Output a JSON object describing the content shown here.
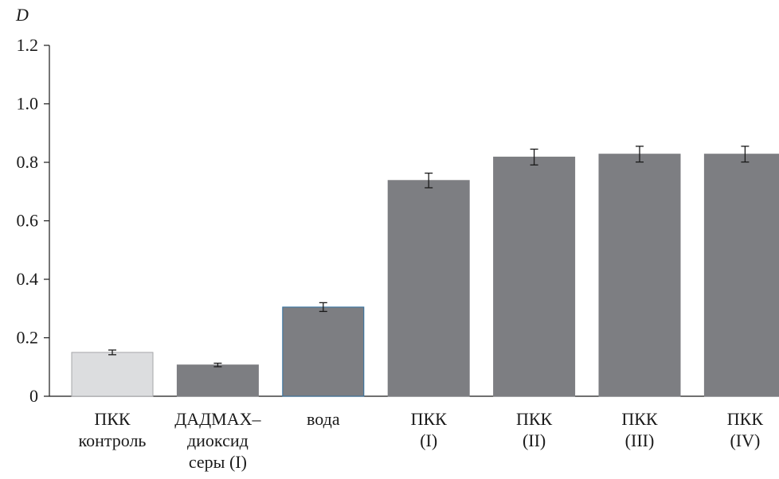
{
  "chart_data": {
    "type": "bar",
    "title": "",
    "xlabel": "",
    "ylabel": "D",
    "ylim": [
      0,
      1.2
    ],
    "yticks": [
      "0",
      "0.2",
      "0.4",
      "0.6",
      "0.8",
      "1.0",
      "1.2"
    ],
    "grid": false,
    "legend": "none",
    "categories": [
      [
        "ПКК",
        "контроль"
      ],
      [
        "ДАДМАХ–",
        "диоксид",
        "серы (I)"
      ],
      [
        "вода"
      ],
      [
        "ПКК",
        "(I)"
      ],
      [
        "ПКК",
        "(II)"
      ],
      [
        "ПКК",
        "(III)"
      ],
      [
        "ПКК",
        "(IV)"
      ]
    ],
    "values": [
      0.15,
      0.107,
      0.305,
      0.738,
      0.818,
      0.828,
      0.828
    ],
    "errors": [
      0.008,
      0.006,
      0.015,
      0.025,
      0.027,
      0.027,
      0.027
    ],
    "bar_colors": [
      "#dcdddf",
      "#7d7e82",
      "#7d7e82",
      "#7d7e82",
      "#7d7e82",
      "#7d7e82",
      "#7d7e82"
    ],
    "bar_edge_colors": [
      "#a6a7aa",
      "#7d7e82",
      "#2f6f9f",
      "#7d7e82",
      "#7d7e82",
      "#7d7e82",
      "#7d7e82"
    ]
  }
}
